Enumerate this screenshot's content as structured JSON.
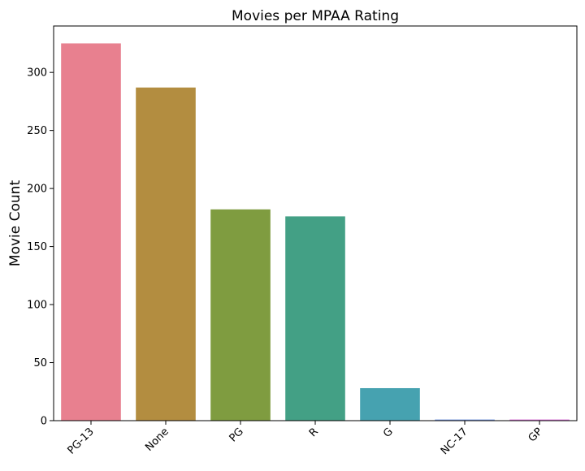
{
  "chart_data": {
    "type": "bar",
    "title": "Movies per MPAA Rating",
    "xlabel": "",
    "ylabel": "Movie Count",
    "categories": [
      "PG-13",
      "None",
      "PG",
      "R",
      "G",
      "NC-17",
      "GP"
    ],
    "values": [
      325,
      287,
      182,
      176,
      28,
      1,
      1
    ],
    "colors": [
      "#e8808f",
      "#b38d40",
      "#7f9c40",
      "#43a085",
      "#46a2b0",
      "#7b9ee8",
      "#e377e0"
    ],
    "ylim": [
      0,
      340
    ],
    "yticks": [
      0,
      50,
      100,
      150,
      200,
      250,
      300
    ],
    "grid": false,
    "legend": "none"
  }
}
